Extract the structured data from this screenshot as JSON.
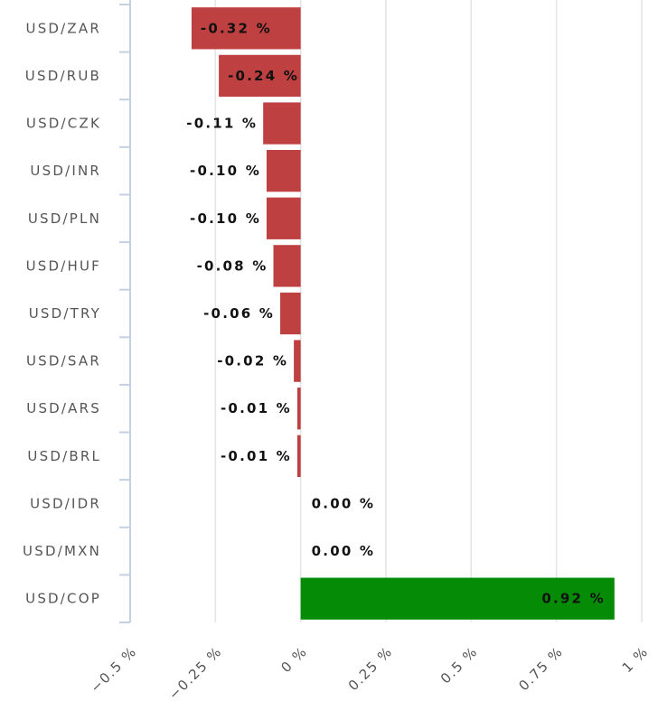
{
  "chart_data": {
    "type": "bar",
    "orientation": "horizontal",
    "categories": [
      "USD/ZAR",
      "USD/RUB",
      "USD/CZK",
      "USD/INR",
      "USD/PLN",
      "USD/HUF",
      "USD/TRY",
      "USD/SAR",
      "USD/ARS",
      "USD/BRL",
      "USD/IDR",
      "USD/MXN",
      "USD/COP"
    ],
    "values": [
      -0.32,
      -0.24,
      -0.11,
      -0.1,
      -0.1,
      -0.08,
      -0.06,
      -0.02,
      -0.01,
      -0.01,
      0.0,
      0.0,
      0.92
    ],
    "value_labels": [
      "-0.32 %",
      "-0.24 %",
      "-0.11 %",
      "-0.10 %",
      "-0.10 %",
      "-0.08 %",
      "-0.06 %",
      "-0.02 %",
      "-0.01 %",
      "-0.01 %",
      "0.00 %",
      "0.00 %",
      "0.92 %"
    ],
    "xlim": [
      -0.5,
      1
    ],
    "x_ticks": [
      -0.5,
      -0.25,
      0,
      0.25,
      0.5,
      0.75,
      1
    ],
    "x_tick_labels": [
      "−0.5 %",
      "−0.25 %",
      "0 %",
      "0.25 %",
      "0.5 %",
      "0.75 %",
      "1 %"
    ],
    "title": "",
    "xlabel": "",
    "ylabel": "",
    "grid": "vertical",
    "colors": {
      "negative": "#be4040",
      "positive": "#068b06",
      "grid": "#e3e3e3",
      "axis": "#c4d0e3",
      "text": "#555555"
    }
  }
}
